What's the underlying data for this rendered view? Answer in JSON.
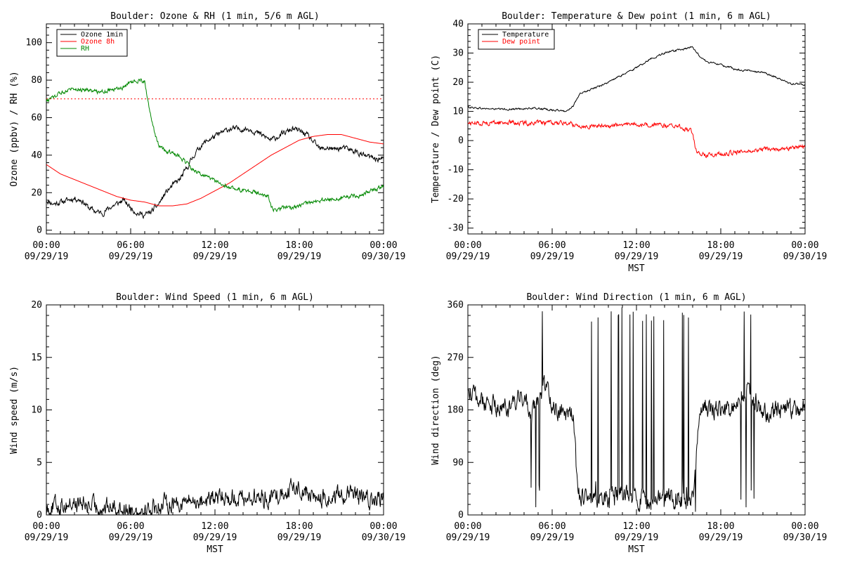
{
  "chart_data": [
    {
      "type": "line",
      "title": "Boulder: Ozone & RH (1 min, 5/6 m AGL)",
      "ylabel": "Ozone (ppbv) / RH (%)",
      "xlabel": "",
      "xlim": [
        0,
        24
      ],
      "ylim": [
        -2,
        110
      ],
      "yticks": [
        0,
        20,
        40,
        60,
        80,
        100
      ],
      "xticks": [
        {
          "hour": 0,
          "time": "00:00",
          "date": "09/29/19"
        },
        {
          "hour": 6,
          "time": "06:00",
          "date": "09/29/19"
        },
        {
          "hour": 12,
          "time": "12:00",
          "date": "09/29/19"
        },
        {
          "hour": 18,
          "time": "18:00",
          "date": "09/29/19"
        },
        {
          "hour": 24,
          "time": "00:00",
          "date": "09/30/19"
        }
      ],
      "legend": "top-left",
      "series": [
        {
          "name": "Ozone 1min",
          "color": "#000000",
          "noise": 1.2,
          "x": [
            0,
            0.5,
            1,
            1.5,
            2,
            2.5,
            3,
            3.5,
            4,
            4.5,
            5,
            5.5,
            6,
            6.5,
            7,
            7.5,
            8,
            8.5,
            9,
            9.5,
            10,
            10.5,
            11,
            11.5,
            12,
            12.5,
            13,
            13.5,
            14,
            14.5,
            15,
            15.5,
            16,
            16.5,
            17,
            17.5,
            18,
            18.5,
            19,
            19.5,
            20,
            20.5,
            21,
            21.5,
            22,
            22.5,
            23,
            23.5,
            24
          ],
          "values": [
            16,
            14,
            15,
            16,
            17,
            16,
            12,
            10,
            9,
            12,
            14,
            16,
            12,
            9,
            8,
            10,
            14,
            20,
            24,
            27,
            33,
            40,
            45,
            48,
            50,
            52,
            54,
            54,
            54,
            54,
            52,
            50,
            48,
            50,
            52,
            54,
            53,
            51,
            47,
            43,
            44,
            43,
            44,
            43,
            42,
            40,
            39,
            38,
            38
          ]
        },
        {
          "name": "Ozone 8h",
          "color": "#ff0000",
          "noise": 0,
          "x": [
            0,
            1,
            2,
            3,
            4,
            5,
            6,
            7,
            8,
            9,
            10,
            11,
            12,
            13,
            14,
            15,
            16,
            17,
            18,
            19,
            20,
            21,
            22,
            23,
            24
          ],
          "values": [
            35,
            30,
            27,
            24,
            21,
            18,
            16,
            15,
            13,
            13,
            14,
            17,
            21,
            25,
            30,
            35,
            40,
            44,
            48,
            50,
            51,
            51,
            49,
            47,
            46
          ]
        },
        {
          "name": "RH",
          "color": "#008800",
          "noise": 0.9,
          "x": [
            0,
            0.5,
            1,
            1.5,
            2,
            2.5,
            3,
            3.5,
            4,
            4.5,
            5,
            5.5,
            6,
            6.5,
            7,
            7.3,
            7.6,
            8,
            8.5,
            9,
            9.5,
            10,
            10.5,
            11,
            11.5,
            12,
            12.5,
            13,
            13.5,
            14,
            14.5,
            15,
            15.5,
            15.8,
            16,
            16.2,
            16.5,
            17,
            17.5,
            18,
            18.5,
            19,
            19.5,
            20,
            20.5,
            21,
            21.5,
            22,
            22.5,
            23,
            23.5,
            24
          ],
          "values": [
            69,
            71,
            73,
            75,
            76,
            75,
            75,
            74,
            74,
            75,
            75,
            76,
            79,
            80,
            79,
            65,
            55,
            45,
            42,
            41,
            39,
            36,
            32,
            30,
            28,
            26,
            24,
            23,
            22,
            21,
            21,
            20,
            19,
            18,
            12,
            11,
            11,
            12,
            12,
            13,
            14,
            15,
            16,
            16,
            16,
            17,
            18,
            18,
            19,
            21,
            22,
            24
          ]
        }
      ],
      "reference_line": {
        "y": 70,
        "color": "#ff0000",
        "style": "dotted"
      }
    },
    {
      "type": "line",
      "title": "Boulder: Temperature & Dew point (1 min, 6 m AGL)",
      "ylabel": "Temperature / Dew point (C)",
      "xlabel": "MST",
      "xlim": [
        0,
        24
      ],
      "ylim": [
        -32,
        40
      ],
      "yticks": [
        -30,
        -20,
        -10,
        0,
        10,
        20,
        30,
        40
      ],
      "xticks": [
        {
          "hour": 0,
          "time": "00:00",
          "date": "09/29/19"
        },
        {
          "hour": 6,
          "time": "06:00",
          "date": "09/29/19"
        },
        {
          "hour": 12,
          "time": "12:00",
          "date": "09/29/19"
        },
        {
          "hour": 18,
          "time": "18:00",
          "date": "09/29/19"
        },
        {
          "hour": 24,
          "time": "00:00",
          "date": "09/30/19"
        }
      ],
      "legend": "top-left",
      "series": [
        {
          "name": "Temperature",
          "color": "#000000",
          "noise": 0.25,
          "x": [
            0,
            1,
            2,
            3,
            4,
            5,
            6,
            7,
            7.5,
            8,
            9,
            10,
            11,
            12,
            13,
            14,
            15,
            15.5,
            16,
            16.5,
            17,
            18,
            19,
            19.5,
            20,
            21,
            22,
            23,
            24
          ],
          "values": [
            11.5,
            11,
            10.8,
            10.7,
            11,
            11,
            10.5,
            10,
            12,
            16,
            18,
            20,
            22.5,
            25,
            28,
            30,
            31,
            31.5,
            32,
            29,
            27,
            26,
            24.5,
            24,
            24,
            23.5,
            21.5,
            19.5,
            19
          ]
        },
        {
          "name": "Dew point",
          "color": "#ff0000",
          "noise": 0.6,
          "x": [
            0,
            1,
            2,
            3,
            4,
            5,
            6,
            7,
            7.5,
            8,
            9,
            10,
            11,
            12,
            13,
            14,
            15,
            16,
            16.2,
            16.5,
            17,
            18,
            19,
            20,
            21,
            22,
            23,
            24
          ],
          "values": [
            6,
            6,
            6.2,
            6.2,
            6,
            6,
            6,
            6,
            5.5,
            5,
            5,
            5,
            5.5,
            5.5,
            5.5,
            5,
            5,
            3,
            -3,
            -4.5,
            -5,
            -4.5,
            -4,
            -3.5,
            -3,
            -3,
            -2.5,
            -2
          ]
        }
      ]
    },
    {
      "type": "line",
      "title": "Boulder: Wind Speed (1 min, 6 m AGL)",
      "ylabel": "Wind speed (m/s)",
      "xlabel": "MST",
      "xlim": [
        0,
        24
      ],
      "ylim": [
        0,
        20
      ],
      "yticks": [
        0,
        5,
        10,
        15,
        20
      ],
      "xticks": [
        {
          "hour": 0,
          "time": "00:00",
          "date": "09/29/19"
        },
        {
          "hour": 6,
          "time": "06:00",
          "date": "09/29/19"
        },
        {
          "hour": 12,
          "time": "12:00",
          "date": "09/29/19"
        },
        {
          "hour": 18,
          "time": "18:00",
          "date": "09/29/19"
        },
        {
          "hour": 24,
          "time": "00:00",
          "date": "09/30/19"
        }
      ],
      "series": [
        {
          "color": "#000000",
          "noise": 0.7,
          "x": [
            0,
            1,
            2,
            3,
            4,
            5,
            6,
            7,
            8,
            9,
            10,
            11,
            12,
            13,
            14,
            15,
            16,
            17,
            18,
            19,
            20,
            21,
            22,
            23,
            24
          ],
          "values": [
            0.6,
            1.0,
            1.1,
            0.9,
            0.7,
            0.8,
            0.5,
            0.5,
            0.9,
            1.2,
            1.3,
            1.4,
            1.5,
            1.7,
            1.7,
            1.6,
            1.6,
            2.4,
            2.6,
            1.7,
            1.4,
            2.0,
            1.8,
            1.4,
            1.5
          ]
        }
      ]
    },
    {
      "type": "line",
      "title": "Boulder: Wind Direction (1 min, 6 m AGL)",
      "ylabel": "Wind direction (deg)",
      "xlabel": "MST",
      "xlim": [
        0,
        24
      ],
      "ylim": [
        0,
        360
      ],
      "yticks": [
        0,
        90,
        180,
        270,
        360
      ],
      "xticks": [
        {
          "hour": 0,
          "time": "00:00",
          "date": "09/29/19"
        },
        {
          "hour": 6,
          "time": "06:00",
          "date": "09/29/19"
        },
        {
          "hour": 12,
          "time": "12:00",
          "date": "09/29/19"
        },
        {
          "hour": 18,
          "time": "18:00",
          "date": "09/29/19"
        },
        {
          "hour": 24,
          "time": "00:00",
          "date": "09/30/19"
        }
      ],
      "series": [
        {
          "color": "#000000",
          "noise": 14,
          "x": [
            0,
            0.5,
            1,
            2,
            3,
            3.5,
            4,
            4.5,
            5,
            5.5,
            6,
            6.5,
            7,
            7.5,
            7.8,
            8,
            9,
            10,
            11,
            12,
            13,
            14,
            15,
            16,
            16.5,
            17,
            18,
            19,
            19.5,
            20,
            21,
            22,
            23,
            24
          ],
          "values": [
            220,
            200,
            195,
            185,
            180,
            190,
            210,
            170,
            200,
            220,
            190,
            180,
            175,
            170,
            40,
            30,
            25,
            30,
            35,
            30,
            25,
            30,
            25,
            20,
            180,
            185,
            180,
            180,
            200,
            210,
            180,
            175,
            180,
            185
          ]
        }
      ],
      "spike_intervals": [
        [
          4.4,
          5.4
        ],
        [
          7.7,
          16.2
        ],
        [
          19.3,
          20.5
        ]
      ]
    }
  ]
}
